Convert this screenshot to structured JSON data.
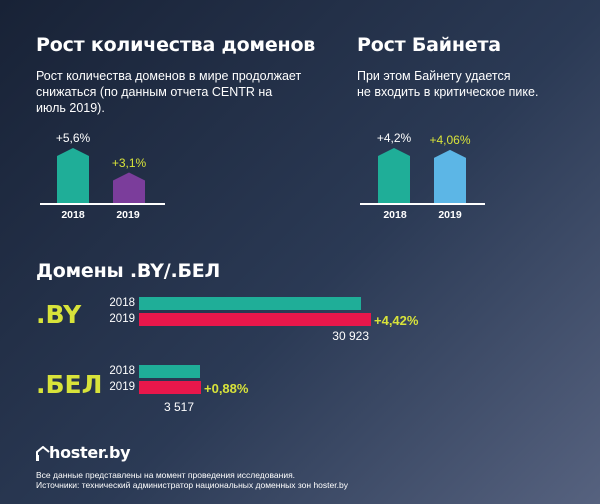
{
  "colors": {
    "teal": "#1fae98",
    "purple": "#7b3d9b",
    "lightblue": "#5cb6e6",
    "red": "#e8174b",
    "highlight": "#d8e33a",
    "text": "#ffffff"
  },
  "left_section": {
    "title": "Рост количества доменов",
    "description_lines": [
      "Рост количества доменов в мире продолжает",
      "снижаться (по данным отчета CENTR на",
      "июль 2019)."
    ]
  },
  "right_section": {
    "title": "Рост Байнета",
    "description_lines": [
      "При этом Байнету удается",
      "не входить в критическое пике."
    ]
  },
  "domains_title": "Домены .BY/.БЕЛ",
  "by": {
    "code": ".BY",
    "total": "30 923"
  },
  "bel": {
    "code": ".БЕЛ",
    "total": "3 517"
  },
  "chart_data": [
    {
      "type": "bar",
      "categories": [
        "2018",
        "2019"
      ],
      "values": [
        5.6,
        3.1
      ],
      "value_labels": [
        "+5,6%",
        "+3,1%"
      ],
      "colors": [
        "#1fae98",
        "#7b3d9b"
      ],
      "max": 5.6
    },
    {
      "type": "bar",
      "categories": [
        "2018",
        "2019"
      ],
      "values": [
        4.2,
        4.06
      ],
      "value_labels": [
        "+4,2%",
        "+4,06%"
      ],
      "colors": [
        "#1fae98",
        "#5cb6e6"
      ],
      "max": 4.2
    },
    {
      "type": "bar",
      "orientation": "horizontal",
      "categories": [
        "2018",
        "2019"
      ],
      "values": [
        29614,
        30923
      ],
      "growth_label": "+4,42%",
      "total_label": "30 923",
      "colors": [
        "#1fae98",
        "#e8174b"
      ],
      "max": 30923
    },
    {
      "type": "bar",
      "orientation": "horizontal",
      "categories": [
        "2018",
        "2019"
      ],
      "values": [
        3486,
        3517
      ],
      "growth_label": "+0,88%",
      "total_label": "3 517",
      "colors": [
        "#1fae98",
        "#e8174b"
      ],
      "max": 3517
    }
  ],
  "brand": "hoster.by",
  "footnote_lines": [
    "Все данные представлены на момент проведения исследования.",
    "Источники: технический администратор национальных доменных зон hoster.by"
  ]
}
